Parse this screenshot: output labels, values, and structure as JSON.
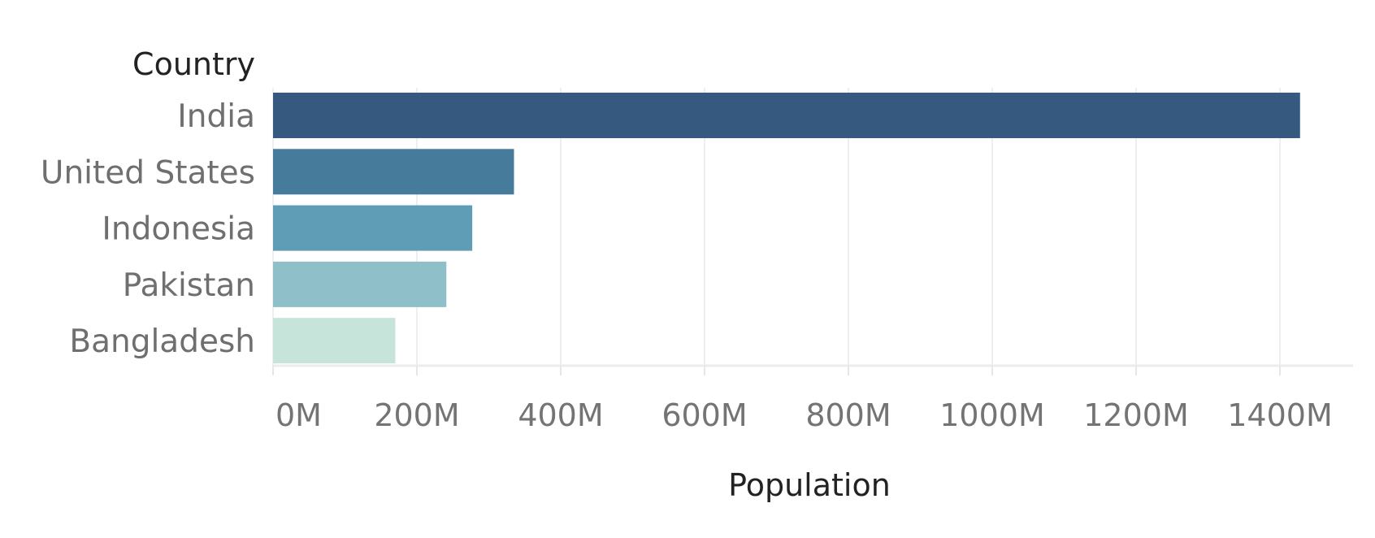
{
  "chart_data": {
    "type": "bar",
    "orientation": "horizontal",
    "categories": [
      "India",
      "United States",
      "Indonesia",
      "Pakistan",
      "Bangladesh"
    ],
    "values": [
      1428,
      335,
      277,
      241,
      170
    ],
    "colors": [
      "#36597f",
      "#477b9c",
      "#5e9db5",
      "#8fc0ca",
      "#c6e4da"
    ],
    "xlabel": "Population",
    "ylabel": "Country",
    "xlim": [
      0,
      1500
    ],
    "xticks": [
      0,
      200,
      400,
      600,
      800,
      1000,
      1200,
      1400
    ],
    "xtick_labels": [
      "0M",
      "200M",
      "400M",
      "600M",
      "800M",
      "1000M",
      "1200M",
      "1400M"
    ],
    "grid": true,
    "legend": false
  }
}
